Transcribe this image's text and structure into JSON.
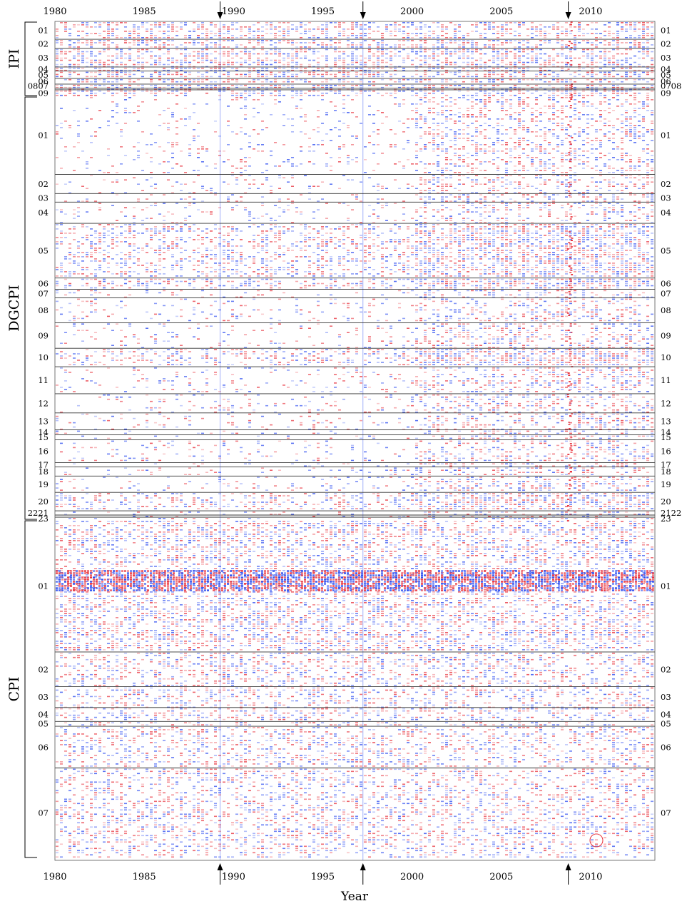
{
  "chart_data": {
    "type": "heatmap",
    "title": "",
    "xlabel": "Year",
    "ylabel": "",
    "x_range": [
      1980,
      2013.6
    ],
    "x_ticks": [
      "1980",
      "1985",
      "1990",
      "1995",
      "2000",
      "2005",
      "2010"
    ],
    "arrow_years": [
      1989.25,
      1997.25,
      2008.75
    ],
    "colors": {
      "positive": "#e8323c",
      "negative": "#2c4cf0",
      "frame": "#000000"
    },
    "groups": [
      {
        "name": "IPI",
        "subgroups": [
          {
            "label": "01",
            "weight": 2.2
          },
          {
            "label": "02",
            "weight": 1.1
          },
          {
            "label": "03",
            "weight": 2.3
          },
          {
            "label": "04",
            "weight": 0.5
          },
          {
            "label": "05",
            "weight": 0.9
          },
          {
            "label": "06",
            "weight": 0.7
          },
          {
            "label": "07",
            "weight": 0.5,
            "left_label": "0807",
            "right_label": "0708"
          },
          {
            "label": "08",
            "weight": 0.2,
            "left_label": "",
            "right_label": ""
          },
          {
            "label": "09",
            "weight": 0.8
          }
        ]
      },
      {
        "name": "DGCPI",
        "subgroups": [
          {
            "label": "01",
            "weight": 11.0
          },
          {
            "label": "02",
            "weight": 2.7
          },
          {
            "label": "03",
            "weight": 1.2
          },
          {
            "label": "04",
            "weight": 3.0
          },
          {
            "label": "05",
            "weight": 7.7
          },
          {
            "label": "06",
            "weight": 1.6
          },
          {
            "label": "07",
            "weight": 1.2
          },
          {
            "label": "08",
            "weight": 3.5
          },
          {
            "label": "09",
            "weight": 3.6
          },
          {
            "label": "10",
            "weight": 2.6
          },
          {
            "label": "11",
            "weight": 3.8
          },
          {
            "label": "12",
            "weight": 2.7
          },
          {
            "label": "13",
            "weight": 2.4
          },
          {
            "label": "14",
            "weight": 0.7
          },
          {
            "label": "15",
            "weight": 0.7
          },
          {
            "label": "16",
            "weight": 3.2
          },
          {
            "label": "17",
            "weight": 0.6
          },
          {
            "label": "18",
            "weight": 1.3
          },
          {
            "label": "19",
            "weight": 2.3
          },
          {
            "label": "20",
            "weight": 2.6
          },
          {
            "label": "21",
            "weight": 0.6,
            "left_label": "2221",
            "right_label": "2122"
          },
          {
            "label": "22",
            "weight": 0.3,
            "left_label": "",
            "right_label": ""
          },
          {
            "label": "23",
            "weight": 0.4
          }
        ]
      },
      {
        "name": "CPI",
        "subgroups": [
          {
            "label": "01",
            "weight": 19.0
          },
          {
            "label": "02",
            "weight": 5.0
          },
          {
            "label": "03",
            "weight": 3.0
          },
          {
            "label": "04",
            "weight": 2.0
          },
          {
            "label": "05",
            "weight": 0.7
          },
          {
            "label": "06",
            "weight": 6.0
          },
          {
            "label": "07",
            "weight": 13.0
          }
        ]
      }
    ]
  }
}
